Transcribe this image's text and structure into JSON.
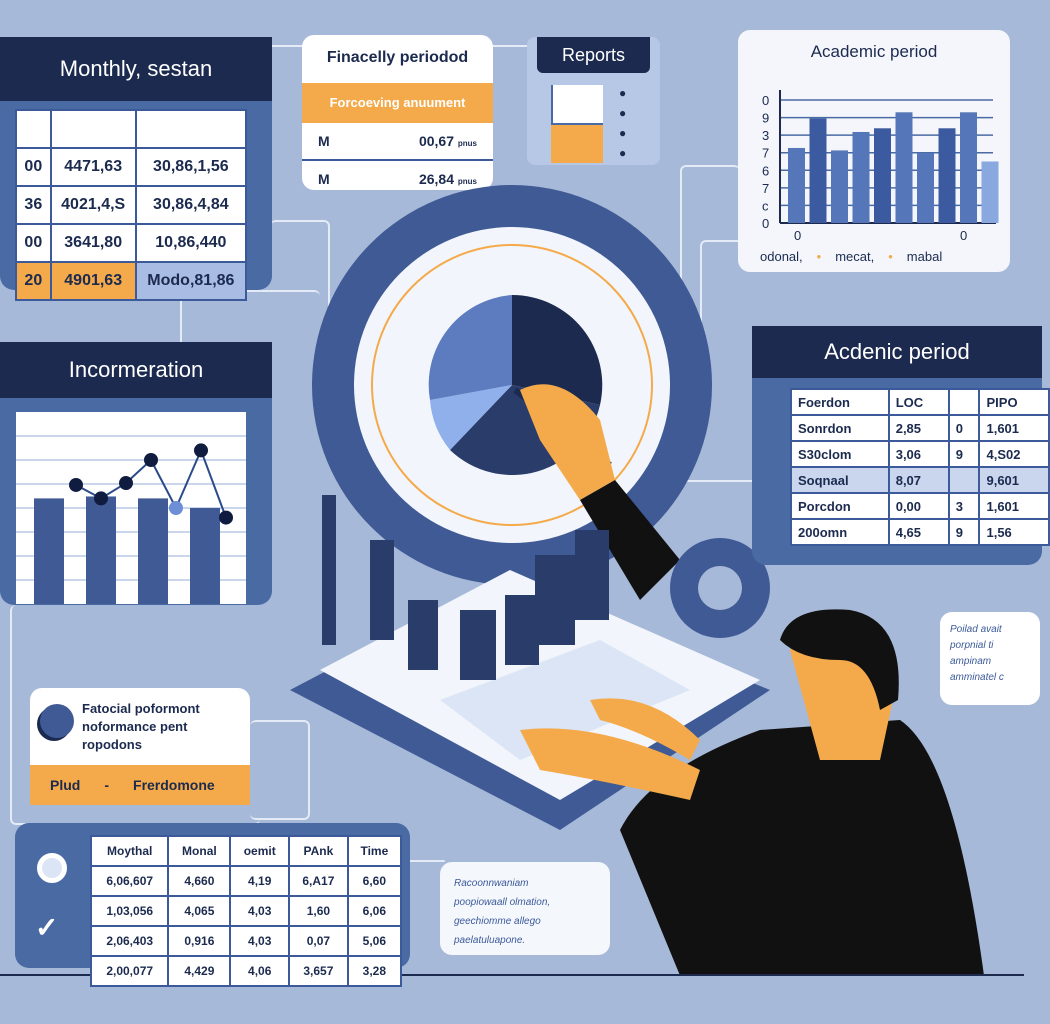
{
  "colors": {
    "navy": "#1b2a4e",
    "panel_blue": "#4a6aa3",
    "accent_orange": "#f4aa4a",
    "background": "#a7b9d8"
  },
  "monthly_panel": {
    "title": "Monthly, sestan",
    "rows": [
      [
        "00",
        "4471,63",
        "30,86,1,56"
      ],
      [
        "36",
        "4021,4,S",
        "30,86,4,84"
      ],
      [
        "00",
        "3641,80",
        "10,86,440"
      ],
      [
        "20",
        "4901,63",
        "Modo,81,86"
      ]
    ]
  },
  "financial_card": {
    "title": "Finacelly periodod",
    "band": "Forcoeving anuument",
    "rows": [
      {
        "label": "M",
        "value": "00,67",
        "unit": "pnus"
      },
      {
        "label": "M",
        "value": "26,84",
        "unit": "pnus"
      }
    ]
  },
  "reports_card": {
    "title": "Reports"
  },
  "academic_chart": {
    "title": "Academic period"
  },
  "chart_data": [
    {
      "type": "bar",
      "title": "Academic period",
      "ytick_labels": [
        "0",
        "9",
        "3",
        "7",
        "6",
        "7",
        "c",
        "0"
      ],
      "xtick_labels": [
        "0",
        "0"
      ],
      "values_relative": [
        0.61,
        0.85,
        0.59,
        0.74,
        0.77,
        0.9,
        0.57,
        0.77,
        0.9,
        0.5
      ],
      "legend": [
        "odonal,",
        "mecat,",
        "mabal"
      ],
      "legend_placement": "bottom",
      "grid": true
    },
    {
      "type": "line",
      "title": "Incormeration",
      "bars_relative": [
        0.55,
        0.56,
        0.55,
        0.5
      ],
      "line_relative": [
        0.62,
        0.55,
        0.63,
        0.75,
        0.5,
        0.8,
        0.45
      ],
      "grid": true
    }
  ],
  "info_panel": {
    "title": "Incormeration"
  },
  "academic_panel": {
    "title": "Acdenic period",
    "header": [
      "Foerdon",
      "LOC",
      "",
      "PIPO"
    ],
    "rows": [
      [
        "Sonrdon",
        "2,85",
        "0",
        "1,601"
      ],
      [
        "S30clom",
        "3,06",
        "9",
        "4,S02"
      ],
      [
        "Soqnaal",
        "8,07",
        "",
        "9,601"
      ],
      [
        "Porcdon",
        "0,00",
        "3",
        "1,601"
      ],
      [
        "200omn",
        "4,65",
        "9",
        "1,56"
      ]
    ]
  },
  "performance_card": {
    "lines": [
      "Fatocial poformont",
      "noformance pent",
      "ropodons"
    ],
    "band_left": "Plud",
    "band_sep": "-",
    "band_right": "Frerdomone"
  },
  "bottom_table": {
    "header": [
      "Moythal",
      "Monal",
      "oemit",
      "PAnk",
      "Time"
    ],
    "rows": [
      [
        "6,06,607",
        "4,660",
        "4,19",
        "6,A17",
        "6,60"
      ],
      [
        "1,03,056",
        "4,065",
        "4,03",
        "1,60",
        "6,06"
      ],
      [
        "2,06,403",
        "0,916",
        "4,03",
        "0,07",
        "5,06"
      ],
      [
        "2,00,077",
        "4,429",
        "4,06",
        "3,657",
        "3,28"
      ]
    ]
  },
  "note_card": {
    "lines": [
      "Racoonnwaniam",
      "poopiowaall olmation,",
      "geechiomme allego",
      "paelatuluapone."
    ]
  },
  "side_note": {
    "lines": [
      "Poilad avait",
      "porpnial ti",
      "ampinam",
      "amminatel c"
    ]
  }
}
